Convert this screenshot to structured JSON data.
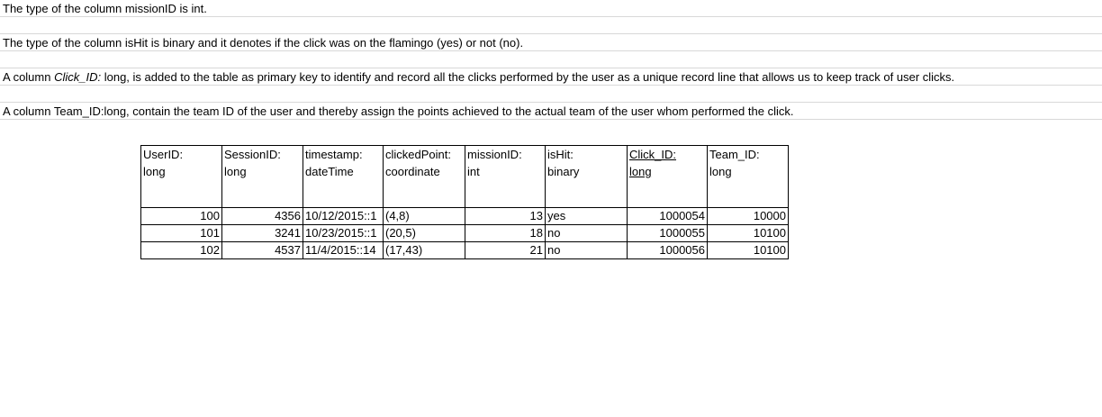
{
  "notes": {
    "line1": "The type of the column missionID is int.",
    "line2": "The type of the column isHit is binary and it denotes if the click was on the flamingo (yes) or not (no).",
    "line3_prefix": "A column ",
    "line3_italic": "Click_ID:",
    "line3_suffix": " long, is added to the table as primary key to identify and record all the clicks performed by the user as a unique record line that allows us to keep track of user clicks.",
    "line4": "A column Team_ID:long, contain the team ID of the user and thereby assign the points achieved to the actual team of the user whom performed the click."
  },
  "table": {
    "headers": [
      {
        "line1": "UserID:",
        "line2": "long"
      },
      {
        "line1": "SessionID:",
        "line2": "long"
      },
      {
        "line1": "timestamp:",
        "line2": "dateTime"
      },
      {
        "line1": "clickedPoint:",
        "line2": "coordinate"
      },
      {
        "line1": "missionID:",
        "line2": "int"
      },
      {
        "line1": "isHit:",
        "line2": "binary"
      },
      {
        "line1": "Click_ID:",
        "line2": "long"
      },
      {
        "line1": "Team_ID:",
        "line2": "long"
      }
    ],
    "rows": [
      {
        "userid": "100",
        "sessionid": "4356",
        "timestamp": "10/12/2015::1",
        "point": "(4,8)",
        "mission": "13",
        "ishit": "yes",
        "clickid": "1000054",
        "teamid": "10000"
      },
      {
        "userid": "101",
        "sessionid": "3241",
        "timestamp": "10/23/2015::1",
        "point": "(20,5)",
        "mission": "18",
        "ishit": "no",
        "clickid": "1000055",
        "teamid": "10100"
      },
      {
        "userid": "102",
        "sessionid": "4537",
        "timestamp": "11/4/2015::14",
        "point": "(17,43)",
        "mission": "21",
        "ishit": "no",
        "clickid": "1000056",
        "teamid": "10100"
      }
    ]
  }
}
